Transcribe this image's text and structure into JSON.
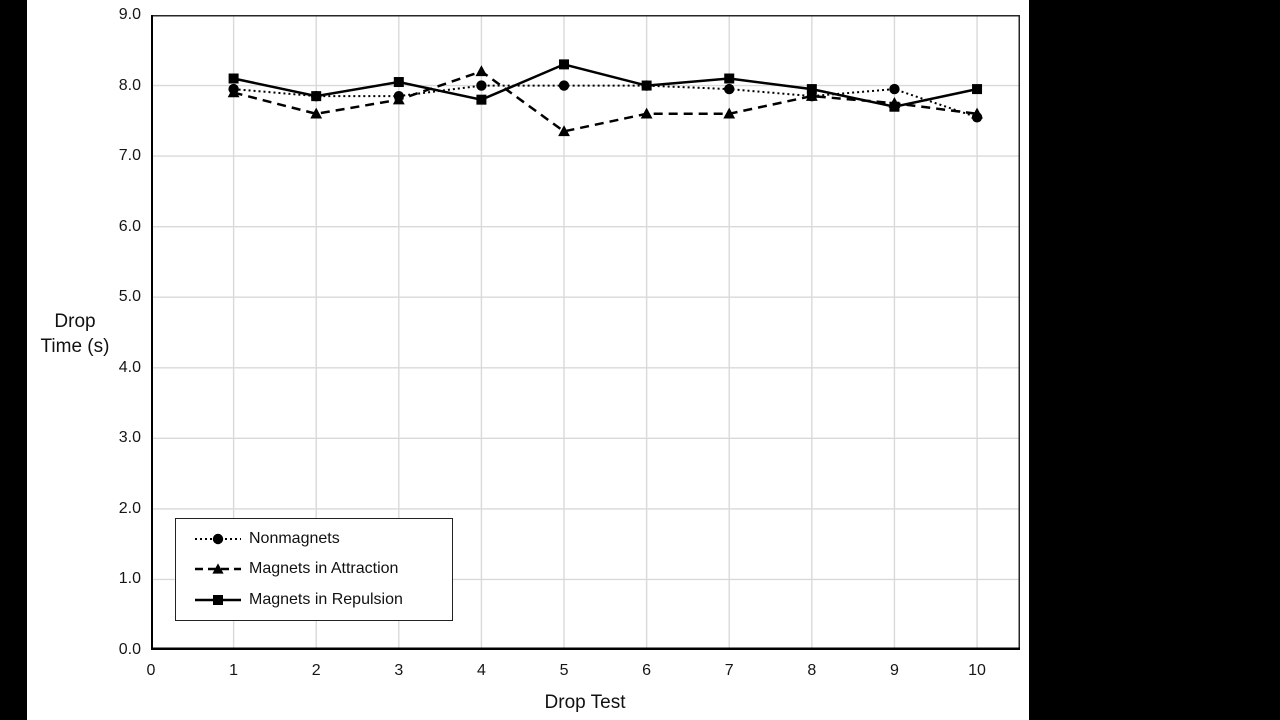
{
  "chart_data": {
    "type": "line",
    "title": "",
    "xlabel": "Drop Test",
    "ylabel": "Drop Time (s)",
    "ylabel_lines": [
      "Drop",
      "Time (s)"
    ],
    "x": [
      1,
      2,
      3,
      4,
      5,
      6,
      7,
      8,
      9,
      10
    ],
    "series": [
      {
        "name": "Nonmagnets",
        "marker": "circle",
        "line": "dotted",
        "values": [
          7.95,
          7.85,
          7.85,
          8.0,
          8.0,
          8.0,
          7.95,
          7.85,
          7.95,
          7.55
        ]
      },
      {
        "name": "Magnets in Attraction",
        "marker": "triangle",
        "line": "dashed",
        "values": [
          7.9,
          7.6,
          7.8,
          8.2,
          7.35,
          7.6,
          7.6,
          7.85,
          7.75,
          7.6
        ]
      },
      {
        "name": "Magnets in Repulsion",
        "marker": "square",
        "line": "solid",
        "values": [
          8.1,
          7.85,
          8.05,
          7.8,
          8.3,
          8.0,
          8.1,
          7.95,
          7.7,
          7.95
        ]
      }
    ],
    "xlim": [
      0,
      10.52
    ],
    "ylim": [
      0,
      9
    ],
    "xticks": {
      "values": [
        0,
        1,
        2,
        3,
        4,
        5,
        6,
        7,
        8,
        9,
        10
      ],
      "labels": [
        "0",
        "1",
        "2",
        "3",
        "4",
        "5",
        "6",
        "7",
        "8",
        "9",
        "10"
      ]
    },
    "yticks": {
      "values": [
        0,
        1,
        2,
        3,
        4,
        5,
        6,
        7,
        8,
        9
      ],
      "labels": [
        "0.0",
        "1.0",
        "2.0",
        "3.0",
        "4.0",
        "5.0",
        "6.0",
        "7.0",
        "8.0",
        "9.0"
      ]
    },
    "grid": true,
    "draw_order": [
      1,
      0,
      2
    ],
    "legend_position": "inside-bottom-left",
    "colors": {
      "series": "#000000",
      "gridline": "#d9d9d9",
      "axis": "#262626",
      "text": "#161616",
      "background": "#ffffff",
      "letterbox": "#000000"
    }
  }
}
